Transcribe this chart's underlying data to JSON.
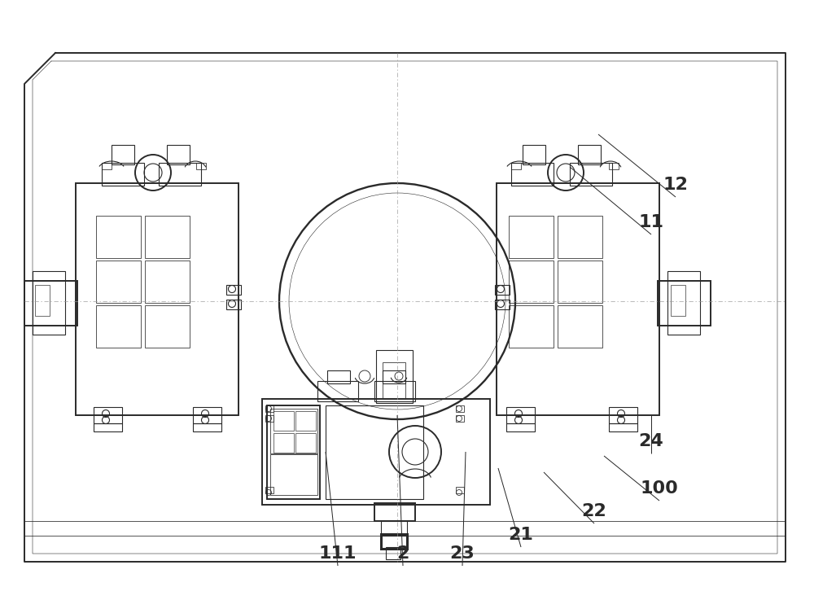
{
  "bg_color": "#ffffff",
  "lc": "#2a2a2a",
  "clc": "#999999",
  "tl": 0.8,
  "ml": 1.4,
  "tk": 2.2,
  "annotations": {
    "111": {
      "lp": [
        415,
        695
      ],
      "le": [
        400,
        555
      ]
    },
    "2": {
      "lp": [
        495,
        695
      ],
      "le": [
        488,
        510
      ]
    },
    "23": {
      "lp": [
        568,
        695
      ],
      "le": [
        572,
        555
      ]
    },
    "21": {
      "lp": [
        640,
        672
      ],
      "le": [
        612,
        575
      ]
    },
    "22": {
      "lp": [
        730,
        643
      ],
      "le": [
        668,
        580
      ]
    },
    "100": {
      "lp": [
        810,
        615
      ],
      "le": [
        742,
        560
      ]
    },
    "24": {
      "lp": [
        800,
        557
      ],
      "le": [
        800,
        510
      ]
    },
    "11": {
      "lp": [
        800,
        288
      ],
      "le": [
        700,
        205
      ]
    },
    "12": {
      "lp": [
        830,
        242
      ],
      "le": [
        735,
        165
      ]
    }
  }
}
